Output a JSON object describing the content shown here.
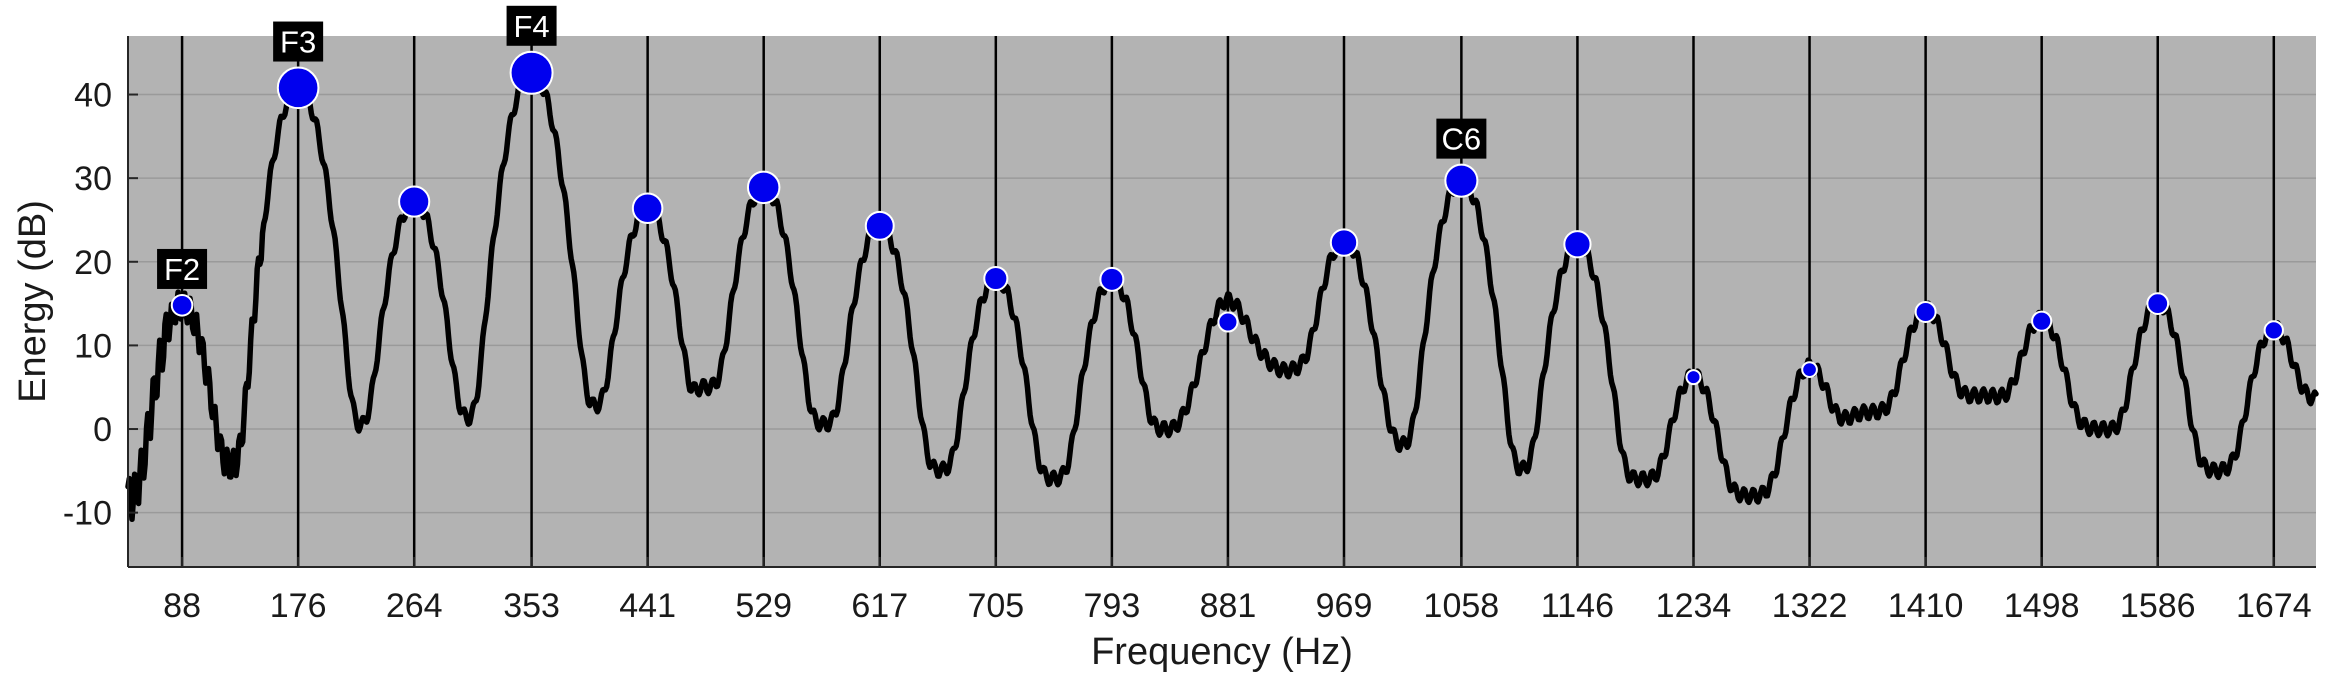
{
  "chart_data": {
    "type": "line",
    "title": "",
    "xlabel": "Frequency (Hz)",
    "ylabel": "Energy (dB)",
    "xlim": [
      47,
      1706
    ],
    "ylim": [
      -16.5,
      47
    ],
    "xticks": [
      88,
      176,
      264,
      353,
      441,
      529,
      617,
      705,
      793,
      881,
      969,
      1058,
      1146,
      1234,
      1322,
      1410,
      1498,
      1586,
      1674
    ],
    "xtick_labels": [
      "88",
      "176",
      "264",
      "353",
      "441",
      "529",
      "617",
      "705",
      "793",
      "881",
      "969",
      "1058",
      "1146",
      "1234",
      "1322",
      "1410",
      "1498",
      "1586",
      "1674"
    ],
    "yticks": [
      -10,
      0,
      10,
      20,
      30,
      40
    ],
    "ytick_labels": [
      "-10",
      "0",
      "10",
      "20",
      "30",
      "40"
    ],
    "grid": true,
    "background": "#b3b3b3",
    "line_color": "#000000",
    "marker_color": "#0000ee",
    "harmonic_line_frequencies": [
      88,
      176,
      264,
      353,
      441,
      529,
      617,
      705,
      793,
      881,
      969,
      1058,
      1146,
      1234,
      1322,
      1410,
      1498,
      1586,
      1674
    ],
    "peaks": [
      {
        "x": 88,
        "y": 14.8
      },
      {
        "x": 176,
        "y": 40.8
      },
      {
        "x": 264,
        "y": 27.2
      },
      {
        "x": 353,
        "y": 42.6
      },
      {
        "x": 441,
        "y": 26.4
      },
      {
        "x": 529,
        "y": 28.9
      },
      {
        "x": 617,
        "y": 24.3
      },
      {
        "x": 705,
        "y": 18.0
      },
      {
        "x": 793,
        "y": 17.9
      },
      {
        "x": 881,
        "y": 12.8
      },
      {
        "x": 969,
        "y": 22.3
      },
      {
        "x": 1058,
        "y": 29.7
      },
      {
        "x": 1146,
        "y": 22.1
      },
      {
        "x": 1234,
        "y": 6.2
      },
      {
        "x": 1322,
        "y": 7.1
      },
      {
        "x": 1410,
        "y": 14.0
      },
      {
        "x": 1498,
        "y": 12.9
      },
      {
        "x": 1586,
        "y": 15.0
      },
      {
        "x": 1674,
        "y": 11.8
      }
    ],
    "annotations": [
      {
        "text": "F2",
        "x": 88,
        "y": 14.8
      },
      {
        "text": "F3",
        "x": 176,
        "y": 40.8
      },
      {
        "text": "F4",
        "x": 353,
        "y": 42.6
      },
      {
        "text": "C6",
        "x": 1058,
        "y": 29.7
      }
    ],
    "spectrum_floor_points": [
      {
        "x": 47,
        "y": -8.5
      },
      {
        "x": 75,
        "y": -7.0
      },
      {
        "x": 133,
        "y": -4.5
      },
      {
        "x": 154,
        "y": -3.0
      },
      {
        "x": 217,
        "y": 0.0
      },
      {
        "x": 309,
        "y": 1.0
      },
      {
        "x": 397,
        "y": 2.5
      },
      {
        "x": 463,
        "y": 1.0
      },
      {
        "x": 483,
        "y": 5.0
      },
      {
        "x": 573,
        "y": 0.5
      },
      {
        "x": 661,
        "y": -5.0
      },
      {
        "x": 749,
        "y": -6.0
      },
      {
        "x": 837,
        "y": 0.0
      },
      {
        "x": 880,
        "y": 12.0
      },
      {
        "x": 925,
        "y": 7.0
      },
      {
        "x": 975,
        "y": 10.0
      },
      {
        "x": 1013,
        "y": -2.0
      },
      {
        "x": 1100,
        "y": -5.0
      },
      {
        "x": 1190,
        "y": -6.0
      },
      {
        "x": 1280,
        "y": -8.0
      },
      {
        "x": 1366,
        "y": 2.0
      },
      {
        "x": 1454,
        "y": 4.0
      },
      {
        "x": 1542,
        "y": 0.0
      },
      {
        "x": 1632,
        "y": -5.0
      },
      {
        "x": 1706,
        "y": 3.5
      }
    ]
  }
}
